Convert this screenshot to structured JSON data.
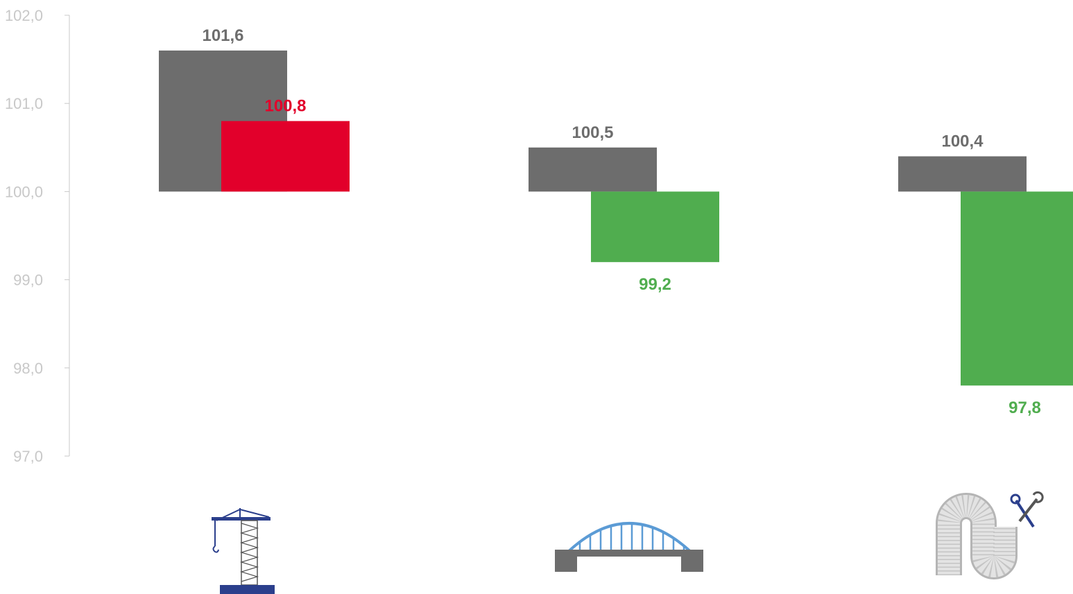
{
  "chart_data": {
    "type": "bar",
    "title": "",
    "xlabel": "",
    "ylabel": "",
    "ylim": [
      97.0,
      102.0
    ],
    "baseline": 100.0,
    "y_ticks": [
      "97,0",
      "98,0",
      "99,0",
      "100,0",
      "101,0",
      "102,0"
    ],
    "categories": [
      "crane-icon",
      "bridge-icon",
      "pipe-icon"
    ],
    "series": [
      {
        "values": [
          101.6,
          100.5,
          100.4
        ],
        "labels": [
          "101,6",
          "100,5",
          "100,4"
        ],
        "color": "#6d6d6d"
      },
      {
        "values": [
          100.8,
          99.2,
          97.8
        ],
        "labels": [
          "100,8",
          "99,2",
          "97,8"
        ],
        "colors": [
          "#e2002b",
          "#50ad4f",
          "#50ad4f"
        ]
      }
    ],
    "grid": false,
    "legend": "none"
  },
  "colors": {
    "axis": "#c8c8c8",
    "gray": "#6d6d6d",
    "red": "#e2002b",
    "green": "#50ad4f",
    "navy": "#2b3f8c",
    "blue": "#5b9bd5",
    "light_gray": "#d9d9d9"
  }
}
